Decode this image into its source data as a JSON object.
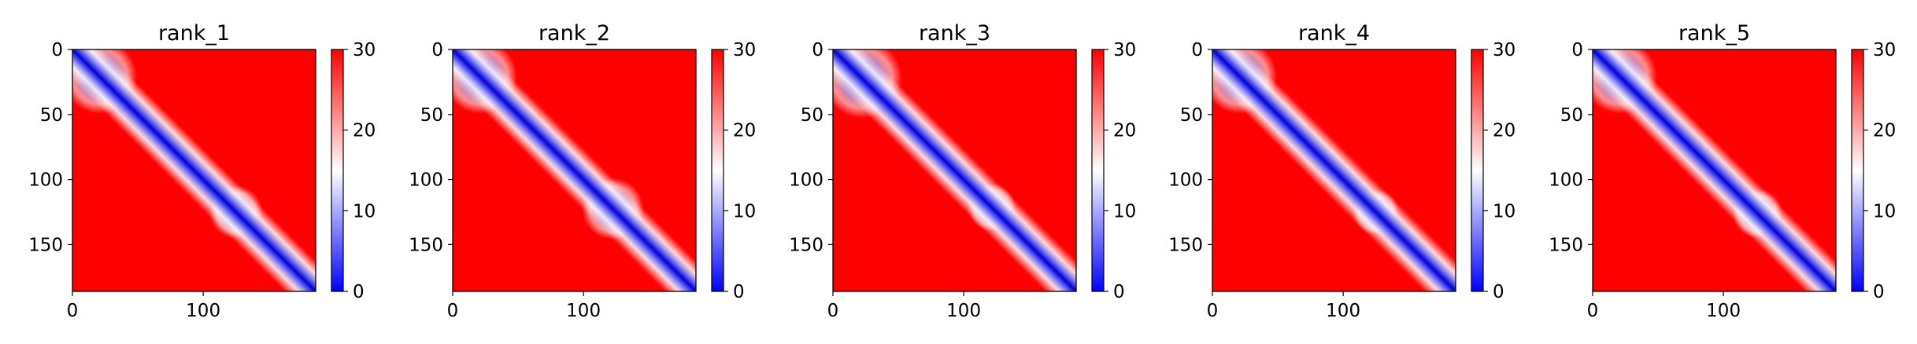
{
  "chart_data": [
    {
      "type": "heatmap",
      "title": "rank_1",
      "matrix_size": 186,
      "x_ticks": [
        0,
        100
      ],
      "y_ticks": [
        0,
        50,
        100,
        150
      ],
      "xlim": [
        0,
        186
      ],
      "ylim": [
        186,
        0
      ],
      "colorbar": {
        "min": 0,
        "max": 30,
        "ticks": [
          0,
          10,
          20,
          30
        ],
        "colormap": "bwr",
        "colors": [
          "#0000ff",
          "#ffffff",
          "#ff0000"
        ]
      },
      "low_value_regions": [
        {
          "kind": "diagonal",
          "value": 0
        },
        {
          "kind": "block",
          "range": [
            0,
            42
          ],
          "value": 8
        },
        {
          "kind": "block",
          "range": [
            110,
            140
          ],
          "value": 8
        }
      ]
    },
    {
      "type": "heatmap",
      "title": "rank_2",
      "matrix_size": 186,
      "x_ticks": [
        0,
        100
      ],
      "y_ticks": [
        0,
        50,
        100,
        150
      ],
      "xlim": [
        0,
        186
      ],
      "ylim": [
        186,
        0
      ],
      "colorbar": {
        "min": 0,
        "max": 30,
        "ticks": [
          0,
          10,
          20,
          30
        ],
        "colormap": "bwr",
        "colors": [
          "#0000ff",
          "#ffffff",
          "#ff0000"
        ]
      },
      "low_value_regions": [
        {
          "kind": "diagonal",
          "value": 0
        },
        {
          "kind": "block",
          "range": [
            0,
            42
          ],
          "value": 8
        },
        {
          "kind": "block",
          "range": [
            105,
            140
          ],
          "value": 8
        }
      ]
    },
    {
      "type": "heatmap",
      "title": "rank_3",
      "matrix_size": 186,
      "x_ticks": [
        0,
        100
      ],
      "y_ticks": [
        0,
        50,
        100,
        150
      ],
      "xlim": [
        0,
        186
      ],
      "ylim": [
        186,
        0
      ],
      "colorbar": {
        "min": 0,
        "max": 30,
        "ticks": [
          0,
          10,
          20,
          30
        ],
        "colormap": "bwr",
        "colors": [
          "#0000ff",
          "#ffffff",
          "#ff0000"
        ]
      },
      "low_value_regions": [
        {
          "kind": "diagonal",
          "value": 0
        },
        {
          "kind": "block",
          "range": [
            0,
            45
          ],
          "value": 8
        },
        {
          "kind": "block",
          "range": [
            108,
            135
          ],
          "value": 8
        }
      ]
    },
    {
      "type": "heatmap",
      "title": "rank_4",
      "matrix_size": 186,
      "x_ticks": [
        0,
        100
      ],
      "y_ticks": [
        0,
        50,
        100,
        150
      ],
      "xlim": [
        0,
        186
      ],
      "ylim": [
        186,
        0
      ],
      "colorbar": {
        "min": 0,
        "max": 30,
        "ticks": [
          0,
          10,
          20,
          30
        ],
        "colormap": "bwr",
        "colors": [
          "#0000ff",
          "#ffffff",
          "#ff0000"
        ]
      },
      "low_value_regions": [
        {
          "kind": "diagonal",
          "value": 0
        },
        {
          "kind": "block",
          "range": [
            0,
            42
          ],
          "value": 8
        },
        {
          "kind": "block",
          "range": [
            112,
            138
          ],
          "value": 8
        }
      ]
    },
    {
      "type": "heatmap",
      "title": "rank_5",
      "matrix_size": 186,
      "x_ticks": [
        0,
        100
      ],
      "y_ticks": [
        0,
        50,
        100,
        150
      ],
      "xlim": [
        0,
        186
      ],
      "ylim": [
        186,
        0
      ],
      "colorbar": {
        "min": 0,
        "max": 30,
        "ticks": [
          0,
          10,
          20,
          30
        ],
        "colormap": "bwr",
        "colors": [
          "#0000ff",
          "#ffffff",
          "#ff0000"
        ]
      },
      "low_value_regions": [
        {
          "kind": "diagonal",
          "value": 0
        },
        {
          "kind": "block",
          "range": [
            0,
            42
          ],
          "value": 8
        },
        {
          "kind": "block",
          "range": [
            112,
            140
          ],
          "value": 8
        }
      ]
    }
  ]
}
